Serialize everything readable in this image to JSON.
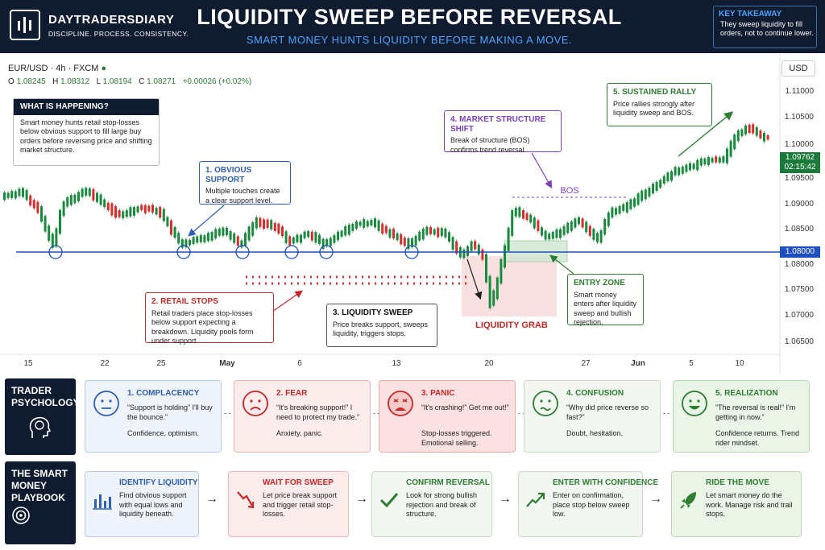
{
  "header": {
    "brand": "DAYTRADERSDIARY",
    "tagline": "DISCIPLINE. PROCESS. CONSISTENCY.",
    "title": "LIQUIDITY SWEEP BEFORE REVERSAL",
    "subtitle": "SMART MONEY HUNTS LIQUIDITY BEFORE MAKING A MOVE.",
    "takeaway_title": "KEY TAKEAWAY",
    "takeaway_text": "They sweep liquidity to fill orders, not to continue lower."
  },
  "chart": {
    "symbol": "EUR/USD · 4h · FXCM",
    "open_label": "O",
    "open": "1.08245",
    "high_label": "H",
    "high": "1.08312",
    "low_label": "L",
    "low": "1.08194",
    "close_label": "C",
    "close": "1.08271",
    "change": "+0.00026 (+0.02%)",
    "currency": "USD",
    "y_ticks": [
      "1.11000",
      "1.10500",
      "1.10000",
      "1.09500",
      "1.09000",
      "1.08500",
      "1.08000",
      "1.07500",
      "1.07000",
      "1.06500"
    ],
    "x_ticks": [
      "15",
      "22",
      "25",
      "May",
      "6",
      "13",
      "20",
      "27",
      "Jun",
      "5",
      "10"
    ],
    "bold_x_ticks": [
      "May",
      "Jun"
    ],
    "price_tag": "1.09762",
    "timer": "02:15:42",
    "support_tag": "1.08000",
    "bos_label": "BOS",
    "liquidity_grab": "LIQUIDITY GRAB"
  },
  "annotations": {
    "what": {
      "title": "WHAT IS HAPPENING?",
      "text": "Smart money hunts retail stop-losses below obvious support to fill large buy orders before reversing price and shifting market structure."
    },
    "a1": {
      "title": "1. OBVIOUS SUPPORT",
      "text": "Multiple touches create a clear support level."
    },
    "a2": {
      "title": "2. RETAIL STOPS",
      "text": "Retail traders place stop-losses below support expecting a breakdown. Liquidity pools form under support."
    },
    "a3": {
      "title": "3. LIQUIDITY SWEEP",
      "text": "Price breaks support, sweeps liquidity, triggers stops."
    },
    "a4": {
      "title": "4. MARKET STRUCTURE SHIFT",
      "text": "Break of structure (BOS) confirms trend reversal."
    },
    "a5": {
      "title": "5. SUSTAINED RALLY",
      "text": "Price rallies strongly after liquidity sweep and BOS."
    },
    "entry": {
      "title": "ENTRY ZONE",
      "text": "Smart money enters after liquidity sweep and bullish rejection."
    }
  },
  "psychology": {
    "label": "TRADER PSYCHOLOGY",
    "cards": [
      {
        "title": "1. COMPLACENCY",
        "quote": "“Support is holding” I'll buy the bounce.”",
        "note": "Confidence, optimism.",
        "color": "#2f5fb3",
        "bg": "#eef3fc",
        "border": "#b9cbec",
        "face": "neutral"
      },
      {
        "title": "2. FEAR",
        "quote": "“It's breaking support!” I need to protect my trade.”",
        "note": "Anxiety, panic.",
        "color": "#c62828",
        "bg": "#fdecec",
        "border": "#f0b4b4",
        "face": "frown"
      },
      {
        "title": "3. PANIC",
        "quote": "“It's crashing!” Get me out!”",
        "note": "Stop-losses triggered. Emotional selling.",
        "color": "#c62828",
        "bg": "#fbe1e1",
        "border": "#eea9a9",
        "face": "panic"
      },
      {
        "title": "4. CONFUSION",
        "quote": "“Why did price reverse so fast?”",
        "note": "Doubt, hesitation.",
        "color": "#2e7d32",
        "bg": "#f2f7f1",
        "border": "#c7dcc5",
        "face": "confused"
      },
      {
        "title": "5. REALIZATION",
        "quote": "“The reversal is real!” I'm getting in now.”",
        "note": "Confidence returns. Trend rider mindset.",
        "color": "#2e7d32",
        "bg": "#eaf5e8",
        "border": "#b9d8b4",
        "face": "happy"
      }
    ]
  },
  "playbook": {
    "label": "THE SMART MONEY PLAYBOOK",
    "cards": [
      {
        "title": "IDENTIFY LIQUIDITY",
        "text": "Find obvious support with equal lows and liquidity beneath.",
        "color": "#2f5fb3",
        "bg": "#eef3fc",
        "border": "#b9cbec",
        "icon": "bar-chart"
      },
      {
        "title": "WAIT FOR SWEEP",
        "text": "Let price break support and trigger retail stop-losses.",
        "color": "#c62828",
        "bg": "#fdecec",
        "border": "#f0b4b4",
        "icon": "down-arrow"
      },
      {
        "title": "CONFIRM REVERSAL",
        "text": "Look for strong bullish rejection and break of structure.",
        "color": "#2e7d32",
        "bg": "#f2f7f1",
        "border": "#c7dcc5",
        "icon": "check"
      },
      {
        "title": "ENTER WITH CONFIDENCE",
        "text": "Enter on confirmation, place stop below sweep low.",
        "color": "#2e7d32",
        "bg": "#f2f7f1",
        "border": "#c7dcc5",
        "icon": "trend-up"
      },
      {
        "title": "RIDE THE MOVE",
        "text": "Let smart money do the work. Manage risk and trail stops.",
        "color": "#2e7d32",
        "bg": "#eaf5e8",
        "border": "#b9d8b4",
        "icon": "rocket"
      }
    ]
  }
}
